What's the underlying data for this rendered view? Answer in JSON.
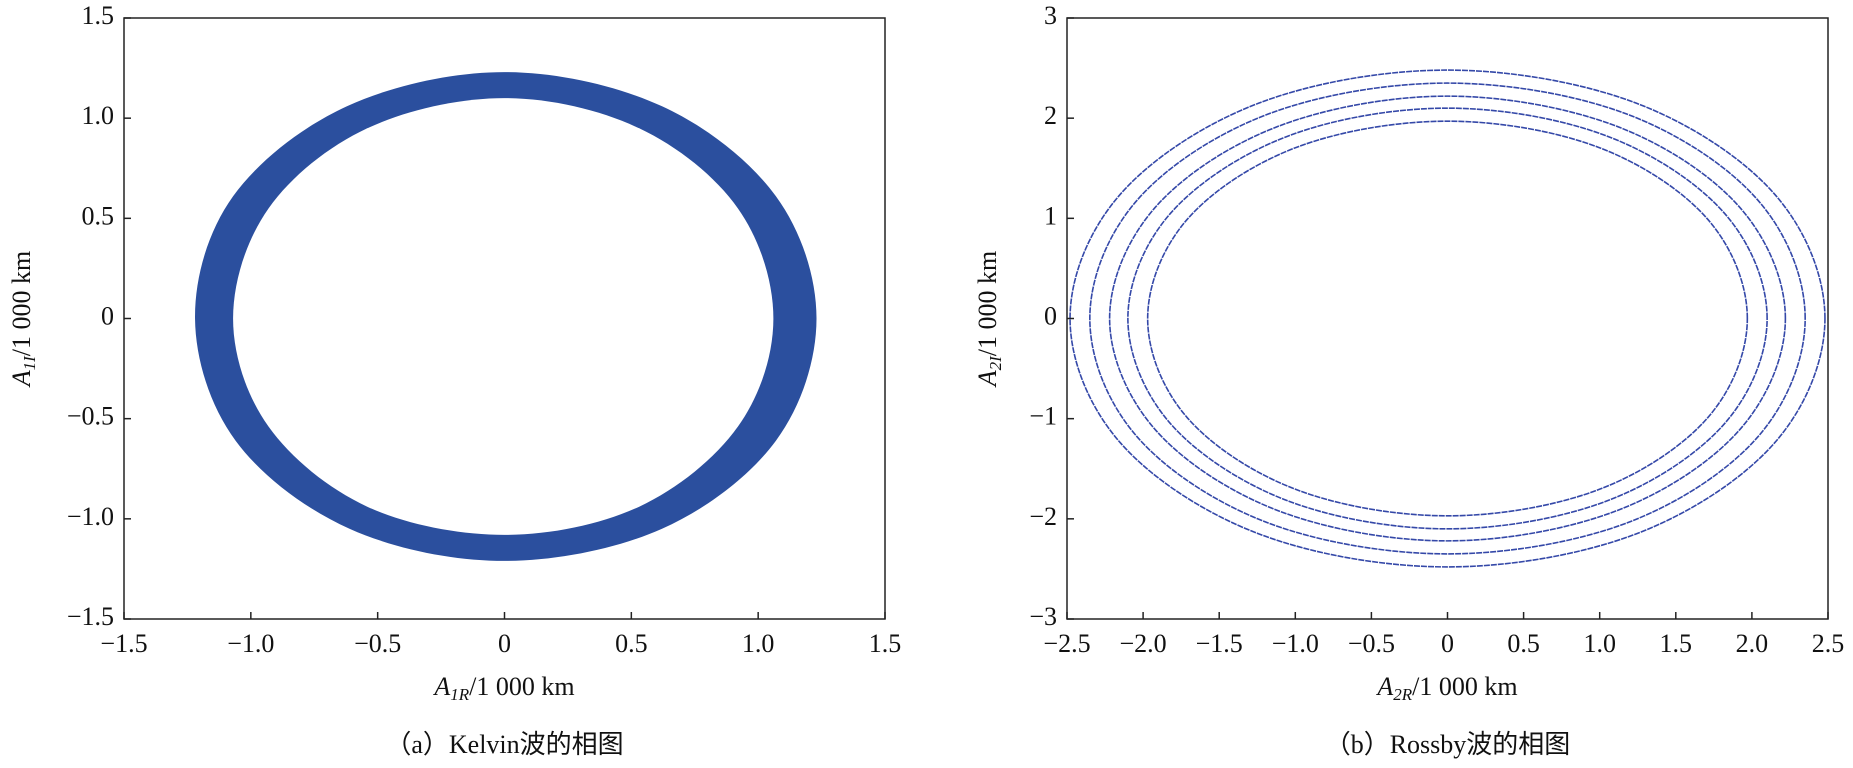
{
  "chart_data": [
    {
      "type": "line",
      "caption": "（a）Kelvin波的相图",
      "xlabel": {
        "symbol": "A",
        "sub": "1R",
        "unit": "/1 000 km"
      },
      "ylabel": {
        "symbol": "A",
        "sub": "1I",
        "unit": "/1 000 km"
      },
      "xlim": [
        -1.5,
        1.5
      ],
      "ylim": [
        -1.5,
        1.5
      ],
      "xticks": [
        {
          "value": -1.5,
          "label": "−1.5"
        },
        {
          "value": -1.0,
          "label": "−1.0"
        },
        {
          "value": -0.5,
          "label": "−0.5"
        },
        0,
        0.5,
        {
          "value": 1.0,
          "label": "1.0"
        },
        1.5
      ],
      "yticks": [
        {
          "value": -1.5,
          "label": "−1.5"
        },
        {
          "value": -1.0,
          "label": "−1.0"
        },
        {
          "value": -0.5,
          "label": "−0.5"
        },
        0,
        0.5,
        {
          "value": 1.0,
          "label": "1.0"
        },
        1.5
      ],
      "band": true,
      "series": [
        {
          "color": "#2b4f9e",
          "x": [
            1.23,
            1.07,
            0.62,
            0,
            -0.62,
            -1.07,
            -1.22,
            -1.06,
            -0.61,
            0,
            0.62,
            1.07
          ],
          "y": [
            0,
            0.61,
            1.06,
            1.23,
            1.06,
            0.61,
            0,
            -0.61,
            -1.05,
            -1.21,
            -1.05,
            -0.61
          ]
        },
        {
          "color": "#ffffff",
          "x": [
            1.06,
            0.92,
            0.53,
            0,
            -0.54,
            -0.93,
            -1.07,
            -0.93,
            -0.54,
            0,
            0.53,
            0.92
          ],
          "y": [
            0,
            0.55,
            0.95,
            1.1,
            0.95,
            0.55,
            0,
            -0.54,
            -0.94,
            -1.08,
            -0.94,
            -0.54
          ]
        }
      ]
    },
    {
      "type": "line",
      "caption": "（b）Rossby波的相图",
      "xlabel": {
        "symbol": "A",
        "sub": "2R",
        "unit": "/1 000 km"
      },
      "ylabel": {
        "symbol": "A",
        "sub": "2I",
        "unit": "/1 000 km"
      },
      "xlim": [
        -2.5,
        2.5
      ],
      "ylim": [
        -3,
        3
      ],
      "xticks": [
        {
          "value": -2.5,
          "label": "−2.5"
        },
        {
          "value": -2.0,
          "label": "−2.0"
        },
        {
          "value": -1.5,
          "label": "−1.5"
        },
        {
          "value": -1.0,
          "label": "−1.0"
        },
        {
          "value": -0.5,
          "label": "−0.5"
        },
        0,
        0.5,
        {
          "value": 1.0,
          "label": "1.0"
        },
        1.5,
        {
          "value": 2.0,
          "label": "2.0"
        },
        2.5
      ],
      "yticks": [
        {
          "value": -3,
          "label": "−3"
        },
        {
          "value": -2,
          "label": "−2"
        },
        {
          "value": -1,
          "label": "−1"
        },
        0,
        1,
        2,
        3
      ],
      "band": false,
      "series": [
        {
          "color": "#3448a8",
          "x": [
            1.97,
            1.71,
            0.99,
            0,
            -0.99,
            -1.71,
            -1.97,
            -1.71,
            -0.99,
            0,
            0.99,
            1.71
          ],
          "y": [
            0,
            0.99,
            1.71,
            1.97,
            1.71,
            0.99,
            0,
            -0.99,
            -1.71,
            -1.97,
            -1.71,
            -0.99
          ]
        },
        {
          "color": "#3448a8",
          "x": [
            2.1,
            1.82,
            1.05,
            0,
            -1.05,
            -1.82,
            -2.1,
            -1.82,
            -1.05,
            0,
            1.05,
            1.82
          ],
          "y": [
            0,
            1.05,
            1.82,
            2.1,
            1.82,
            1.05,
            0,
            -1.05,
            -1.82,
            -2.1,
            -1.82,
            -1.05
          ]
        },
        {
          "color": "#3448a8",
          "x": [
            2.22,
            1.92,
            1.11,
            0,
            -1.11,
            -1.92,
            -2.22,
            -1.92,
            -1.11,
            0,
            1.11,
            1.92
          ],
          "y": [
            0,
            1.11,
            1.92,
            2.22,
            1.92,
            1.11,
            0,
            -1.11,
            -1.92,
            -2.22,
            -1.92,
            -1.11
          ]
        },
        {
          "color": "#3448a8",
          "x": [
            2.35,
            2.04,
            1.18,
            0,
            -1.18,
            -2.04,
            -2.35,
            -2.04,
            -1.18,
            0,
            1.18,
            2.04
          ],
          "y": [
            0,
            1.18,
            2.04,
            2.35,
            2.04,
            1.18,
            0,
            -1.18,
            -2.04,
            -2.35,
            -2.04,
            -1.18
          ]
        },
        {
          "color": "#3448a8",
          "x": [
            2.48,
            2.15,
            1.24,
            0,
            -1.24,
            -2.15,
            -2.48,
            -2.15,
            -1.24,
            0,
            1.24,
            2.15
          ],
          "y": [
            0,
            1.24,
            2.15,
            2.48,
            2.15,
            1.24,
            0,
            -1.24,
            -2.15,
            -2.48,
            -2.15,
            -1.24
          ]
        }
      ]
    }
  ]
}
